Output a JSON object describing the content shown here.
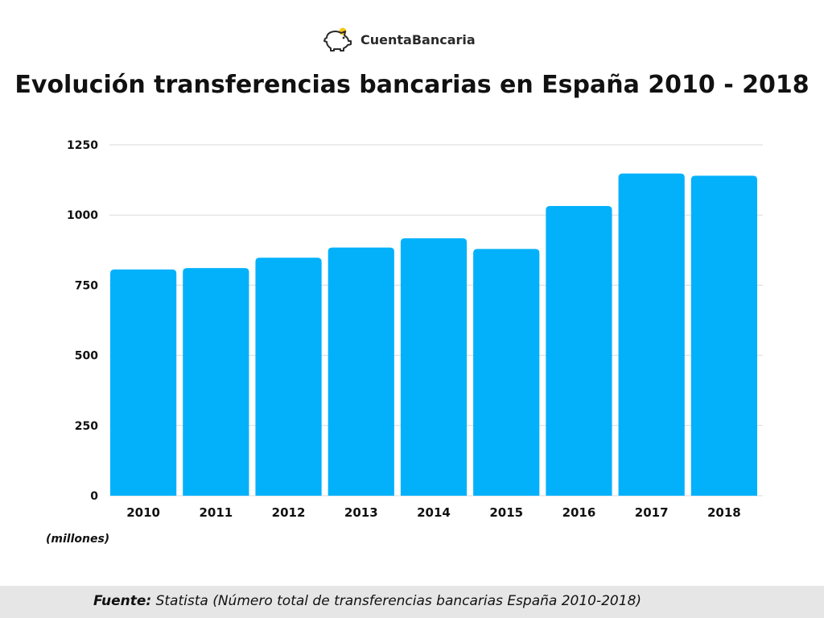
{
  "logo": {
    "icon": "piggy-bank-icon",
    "brand_text": "CuentaBancaria"
  },
  "chart_data": {
    "type": "bar",
    "title": "Evolución transferencias bancarias en España 2010 - 2018",
    "categories": [
      "2010",
      "2011",
      "2012",
      "2013",
      "2014",
      "2015",
      "2016",
      "2017",
      "2018"
    ],
    "values": [
      806,
      811,
      848,
      884,
      917,
      879,
      1032,
      1148,
      1140
    ],
    "ylim": [
      0,
      1250
    ],
    "yticks": [
      "0",
      "250",
      "500",
      "750",
      "1000",
      "1250"
    ],
    "xlabel": "",
    "ylabel": "",
    "grid": true,
    "bar_color": "#03b1fb"
  },
  "unit_note": "(millones)",
  "footer": {
    "label": "Fuente:",
    "text": " Statista (Número total de transferencias bancarias España 2010-2018)"
  },
  "colors": {
    "bar": "#03b1fb",
    "grid": "#d9d9d9",
    "footer_bg": "#e6e6e6"
  }
}
